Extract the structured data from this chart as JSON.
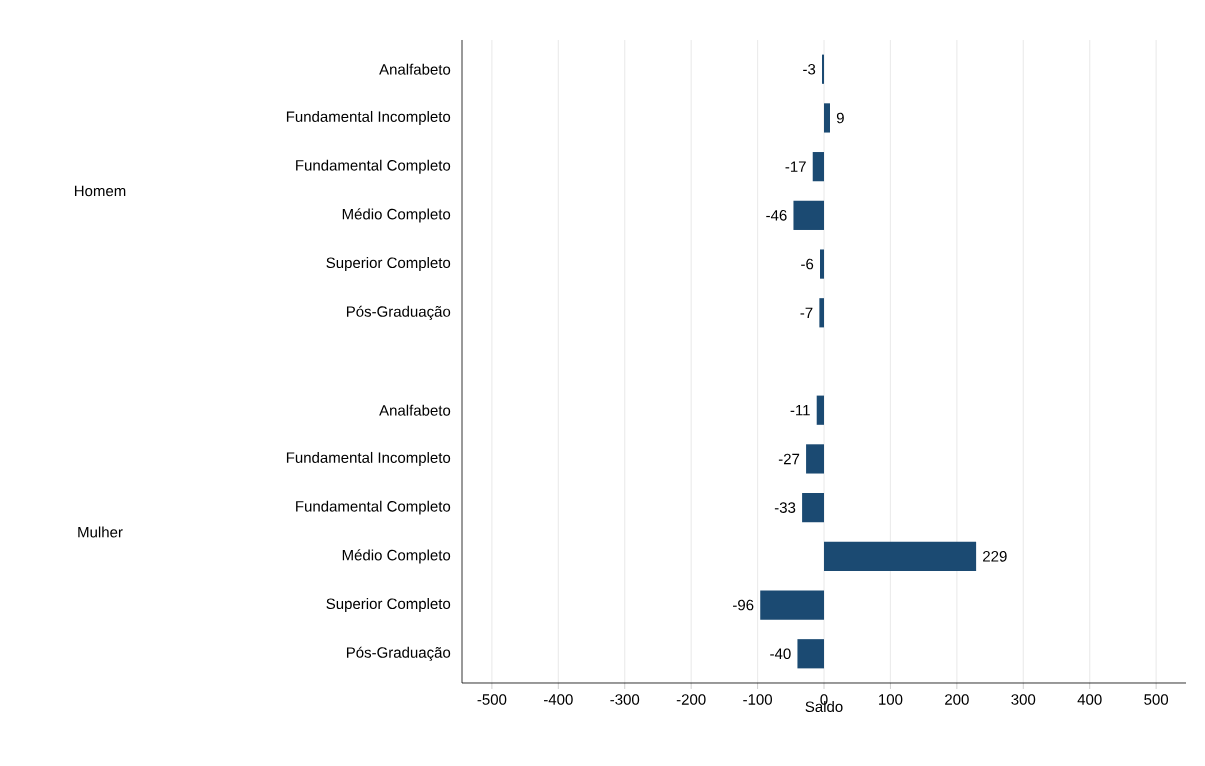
{
  "chart_data": {
    "type": "bar",
    "orientation": "horizontal",
    "xlabel": "Saldo",
    "categories": [
      "Analfabeto",
      "Fundamental Incompleto",
      "Fundamental Completo",
      "Médio Completo",
      "Superior Completo",
      "Pós-Graduação",
      null,
      "Analfabeto",
      "Fundamental Incompleto",
      "Fundamental Completo",
      "Médio Completo",
      "Superior Completo",
      "Pós-Graduação"
    ],
    "values": [
      -3,
      9,
      -17,
      -46,
      -6,
      -7,
      null,
      -11,
      -27,
      -33,
      229,
      -96,
      -40
    ],
    "color": "#1b4a72",
    "data_labels": true,
    "grid": "x",
    "xlim": [
      -545,
      545
    ],
    "xticks": [
      -500,
      -400,
      -300,
      -200,
      -100,
      0,
      100,
      200,
      300,
      400,
      500
    ],
    "annotations": [
      "Homem",
      "Mulher"
    ]
  }
}
